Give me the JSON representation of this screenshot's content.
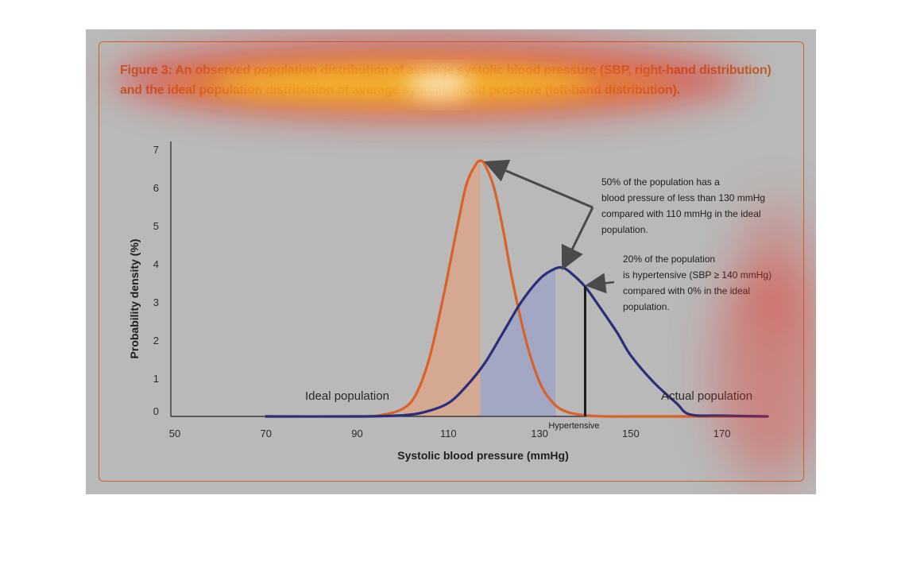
{
  "figure": {
    "caption_line1": "Figure 3: An observed population distribution of average systolic blood pressure (SBP, right-hand distribution)",
    "caption_line2": "and the ideal population distribution of average systolic blood pressure (left-hand distribution)."
  },
  "colors": {
    "ideal": "#d9622a",
    "actual": "#2b2f7a",
    "ideal_fill": "#d9a58a",
    "actual_fill": "#9ea3c4",
    "frame": "#c8662b",
    "arrow": "#4a4a4a",
    "threshold": "#1a1a1a"
  },
  "chart_data": {
    "type": "line",
    "xlabel": "Systolic blood pressure (mmHg)",
    "ylabel": "Probability density (%)",
    "xlim": [
      50,
      180
    ],
    "ylim": [
      0,
      7
    ],
    "x_ticks": [
      "50",
      "70",
      "90",
      "110",
      "130",
      "150",
      "170"
    ],
    "y_ticks": [
      "0",
      "1",
      "2",
      "3",
      "4",
      "5",
      "6",
      "7"
    ],
    "grid": false,
    "series": [
      {
        "name": "Ideal population",
        "x": [
          70,
          90,
          95,
          100,
          103,
          106,
          109,
          112,
          114,
          116,
          117,
          118,
          120,
          122,
          124,
          127,
          130,
          133,
          136,
          140,
          145,
          150,
          160,
          170,
          180
        ],
        "y": [
          0,
          0,
          0.03,
          0.2,
          0.6,
          1.6,
          3.2,
          5.0,
          6.1,
          6.6,
          6.7,
          6.6,
          6.0,
          4.9,
          3.6,
          2.0,
          0.9,
          0.35,
          0.12,
          0.03,
          0,
          0,
          0,
          0,
          0
        ]
      },
      {
        "name": "Actual population",
        "x": [
          70,
          90,
          100,
          105,
          110,
          114,
          118,
          122,
          126,
          130,
          133,
          135,
          137,
          140,
          143,
          147,
          150,
          155,
          160,
          163,
          170,
          180
        ],
        "y": [
          0,
          0,
          0.03,
          0.12,
          0.35,
          0.8,
          1.4,
          2.2,
          3.0,
          3.6,
          3.85,
          3.9,
          3.75,
          3.4,
          2.9,
          2.2,
          1.6,
          0.9,
          0.35,
          0.05,
          0.02,
          0
        ]
      }
    ],
    "shaded_regions": [
      {
        "series": "Ideal population",
        "x_from": 100,
        "x_to": 117
      },
      {
        "series": "Actual population",
        "x_from": 117,
        "x_to": 133.5
      }
    ],
    "threshold": {
      "x": 140,
      "label": "Hypertensive"
    },
    "annotations": [
      {
        "lines": [
          "50% of the population has a",
          "blood pressure of less than 130 mmHg",
          "compared with 110 mmHg in the ideal",
          "population."
        ]
      },
      {
        "lines": [
          "20% of the population",
          "is hypertensive (SBP  ≥ 140 mmHg)",
          "compared with 0% in the ideal",
          "population."
        ]
      }
    ],
    "series_labels": [
      "Ideal population",
      "Actual population"
    ]
  }
}
